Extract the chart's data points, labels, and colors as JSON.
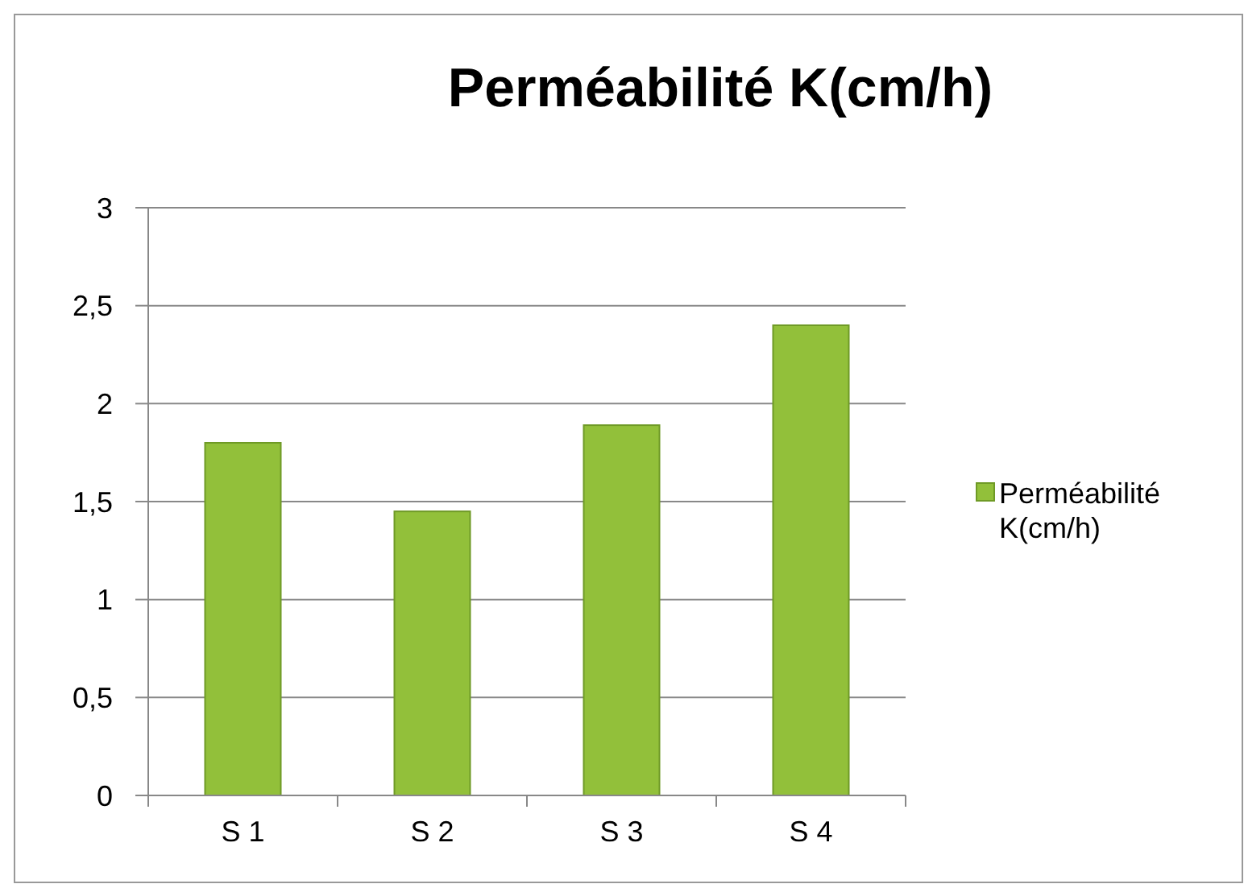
{
  "chart_data": {
    "type": "bar",
    "title": "Perméabilité K(cm/h)",
    "categories": [
      "S 1",
      "S 2",
      "S 3",
      "S 4"
    ],
    "series": [
      {
        "name": "Perméabilité K(cm/h)",
        "color": "#92c03a",
        "values": [
          1.8,
          1.45,
          1.89,
          2.4
        ]
      }
    ],
    "ylim": [
      0,
      3
    ],
    "yticks": [
      0,
      {
        "value": 0.5,
        "label": "0,5"
      },
      1,
      {
        "value": 1.5,
        "label": "1,5"
      },
      2,
      {
        "value": 2.5,
        "label": "2,5"
      },
      3
    ],
    "grid": "y",
    "legend": "right"
  }
}
